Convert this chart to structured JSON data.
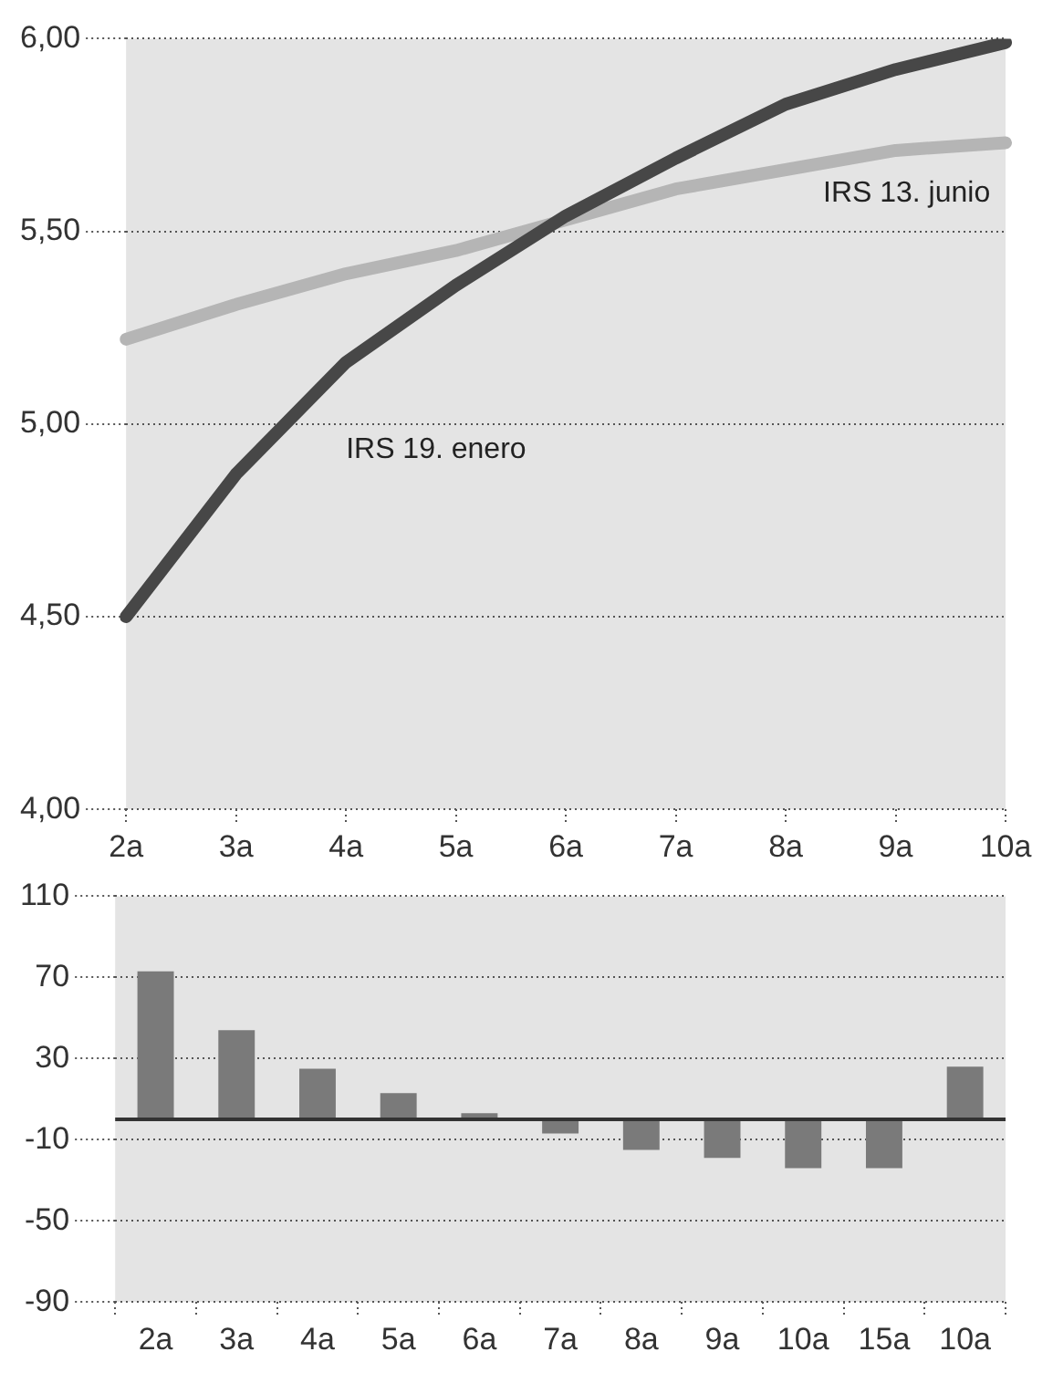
{
  "chart_data": [
    {
      "type": "line",
      "categories": [
        "2a",
        "3a",
        "4a",
        "5a",
        "6a",
        "7a",
        "8a",
        "9a",
        "10a"
      ],
      "series": [
        {
          "name": "IRS 19. enero",
          "color": "#474747",
          "values": [
            4.5,
            4.87,
            5.16,
            5.36,
            5.54,
            5.69,
            5.83,
            5.92,
            5.99
          ]
        },
        {
          "name": "IRS 13. junio",
          "color": "#b5b5b5",
          "values": [
            5.22,
            5.31,
            5.39,
            5.45,
            5.53,
            5.61,
            5.66,
            5.71,
            5.73
          ]
        }
      ],
      "ylim": [
        4,
        6
      ],
      "yticks": [
        {
          "value": 4,
          "label": "4,00"
        },
        {
          "value": 4.5,
          "label": "4,50"
        },
        {
          "value": 5,
          "label": "5,00"
        },
        {
          "value": 5.5,
          "label": "5,50"
        },
        {
          "value": 6,
          "label": "6,00"
        }
      ],
      "grid": "y"
    },
    {
      "type": "bar",
      "categories": [
        "2a",
        "3a",
        "4a",
        "5a",
        "6a",
        "7a",
        "8a",
        "9a",
        "10a",
        "15a",
        "10a"
      ],
      "values": [
        73,
        44,
        25,
        13,
        3,
        -7,
        -15,
        -19,
        -24,
        -24,
        26
      ],
      "color": "#7a7a7a",
      "ylim": [
        -90,
        110
      ],
      "yticks": [
        -90,
        -50,
        -10,
        30,
        70,
        110
      ],
      "grid": "y",
      "ref_lines": [
        {
          "axis": "y",
          "value": 0,
          "color": "#333333"
        }
      ]
    }
  ]
}
